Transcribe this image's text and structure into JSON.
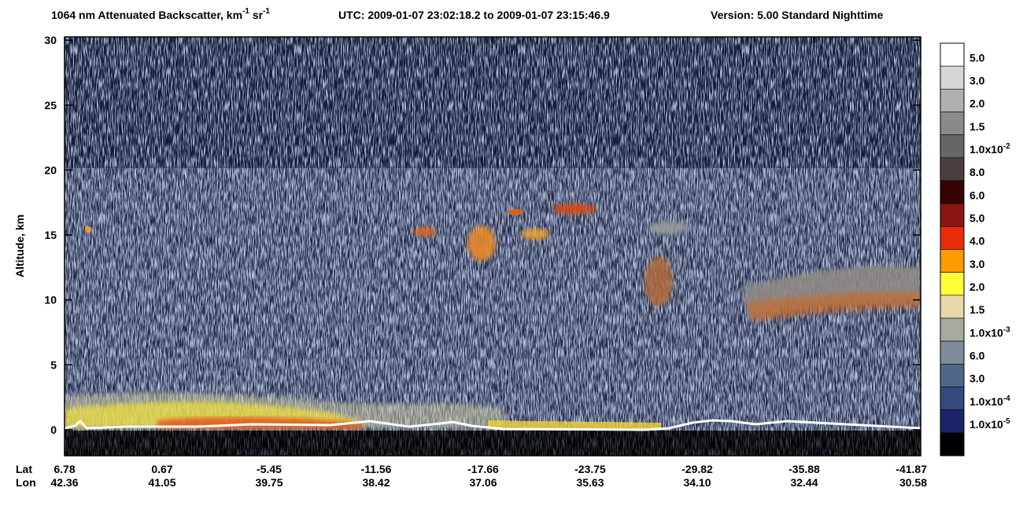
{
  "chart_data": {
    "type": "curtain",
    "title": {
      "quantity": [
        {
          "text": "1064 nm Attenuated Backscatter, km"
        },
        {
          "sup": "-1"
        },
        {
          "text": " sr"
        },
        {
          "sup": "-1"
        }
      ],
      "time": "UTC:  2009-01-07 23:02:18.2  to  2009-01-07 23:15:46.9",
      "version": "Version: 5.00  Standard  Nighttime"
    },
    "ylabel": "Altitude, km",
    "ylim": [
      -2,
      30.25
    ],
    "yticks": [
      0,
      5,
      10,
      15,
      20,
      25,
      30
    ],
    "x_rows": [
      {
        "name": "Lat",
        "labels": [
          "6.78",
          "0.67",
          "-5.45",
          "-11.56",
          "-17.66",
          "-23.75",
          "-29.82",
          "-35.88",
          "-41.87"
        ]
      },
      {
        "name": "Lon",
        "labels": [
          "42.36",
          "41.05",
          "39.75",
          "38.42",
          "37.06",
          "35.63",
          "34.10",
          "32.44",
          "30.58"
        ]
      }
    ],
    "colorbar": [
      {
        "color": "#ffffff",
        "label": "5.0"
      },
      {
        "color": "#d6d6d6",
        "label": "3.0"
      },
      {
        "color": "#b0b0b0",
        "label": "2.0"
      },
      {
        "color": "#8a8a8a",
        "label": "1.5"
      },
      {
        "color": "#666666",
        "label": "1.0x10",
        "exp": "-2"
      },
      {
        "color": "#4a3f3c",
        "label": "8.0"
      },
      {
        "color": "#340303",
        "label": "6.0"
      },
      {
        "color": "#8b1510",
        "label": "5.0"
      },
      {
        "color": "#ea2c0a",
        "label": "4.0"
      },
      {
        "color": "#ff9a00",
        "label": "3.0"
      },
      {
        "color": "#ffff38",
        "label": "2.0"
      },
      {
        "color": "#e8d8a8",
        "label": "1.5"
      },
      {
        "color": "#a8aaa0",
        "label": "1.0x10",
        "exp": "-3"
      },
      {
        "color": "#7d8c98",
        "label": "6.0"
      },
      {
        "color": "#4e6687",
        "label": "3.0"
      },
      {
        "color": "#34497c",
        "label": "1.0x10",
        "exp": "-4"
      },
      {
        "color": "#1c2468",
        "label": "1.0x10",
        "exp": "-5"
      },
      {
        "color": "#000000"
      }
    ]
  }
}
